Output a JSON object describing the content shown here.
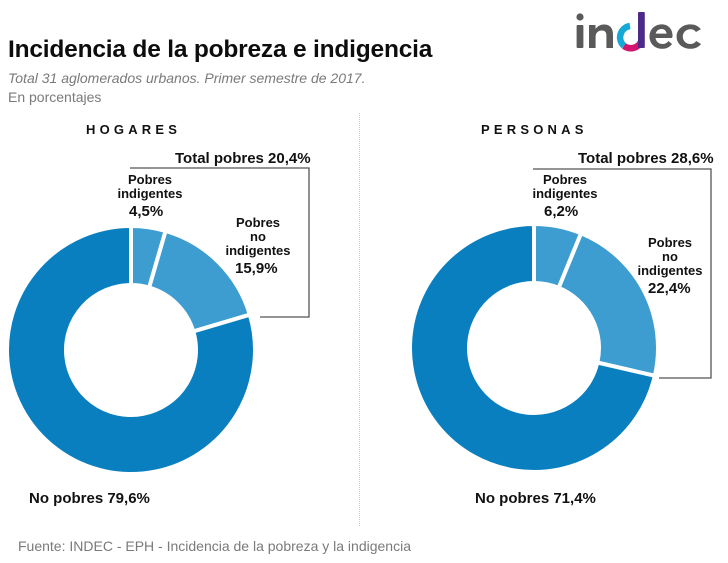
{
  "header": {
    "title": "Incidencia de la pobreza e indigencia",
    "subtitle": "Total 31 aglomerados urbanos. Primer semestre de 2017.",
    "units": "En porcentajes",
    "logo_text": "indec"
  },
  "colors": {
    "no_pobres": "#0a7fbf",
    "pobres": "#3d9dd0",
    "bracket": "#555555",
    "logo_gray": "#5a5a5a",
    "logo_cyan": "#14a9d6",
    "logo_magenta": "#d2166f",
    "logo_purple": "#4b2a8a"
  },
  "chart_data": [
    {
      "type": "pie",
      "donut": true,
      "title": "HOGARES",
      "total_label": "Total pobres 20,4%",
      "categories": [
        "Pobres indigentes",
        "Pobres no indigentes",
        "No pobres"
      ],
      "values": [
        4.5,
        15.9,
        79.6
      ],
      "labels": {
        "indigentes_name": [
          "Pobres",
          "indigentes"
        ],
        "indigentes_value": "4,5%",
        "no_indigentes_name": [
          "Pobres",
          "no",
          "indigentes"
        ],
        "no_indigentes_value": "15,9%",
        "no_pobres": "No pobres 79,6%"
      },
      "total_pobres": 20.4
    },
    {
      "type": "pie",
      "donut": true,
      "title": "PERSONAS",
      "total_label": "Total pobres 28,6%",
      "categories": [
        "Pobres indigentes",
        "Pobres no indigentes",
        "No pobres"
      ],
      "values": [
        6.2,
        22.4,
        71.4
      ],
      "labels": {
        "indigentes_name": [
          "Pobres",
          "indigentes"
        ],
        "indigentes_value": "6,2%",
        "no_indigentes_name": [
          "Pobres",
          "no",
          "indigentes"
        ],
        "no_indigentes_value": "22,4%",
        "no_pobres": "No pobres 71,4%"
      },
      "total_pobres": 28.6
    }
  ],
  "footer": {
    "source": "Fuente: INDEC - EPH - Incidencia de la pobreza y la indigencia"
  }
}
